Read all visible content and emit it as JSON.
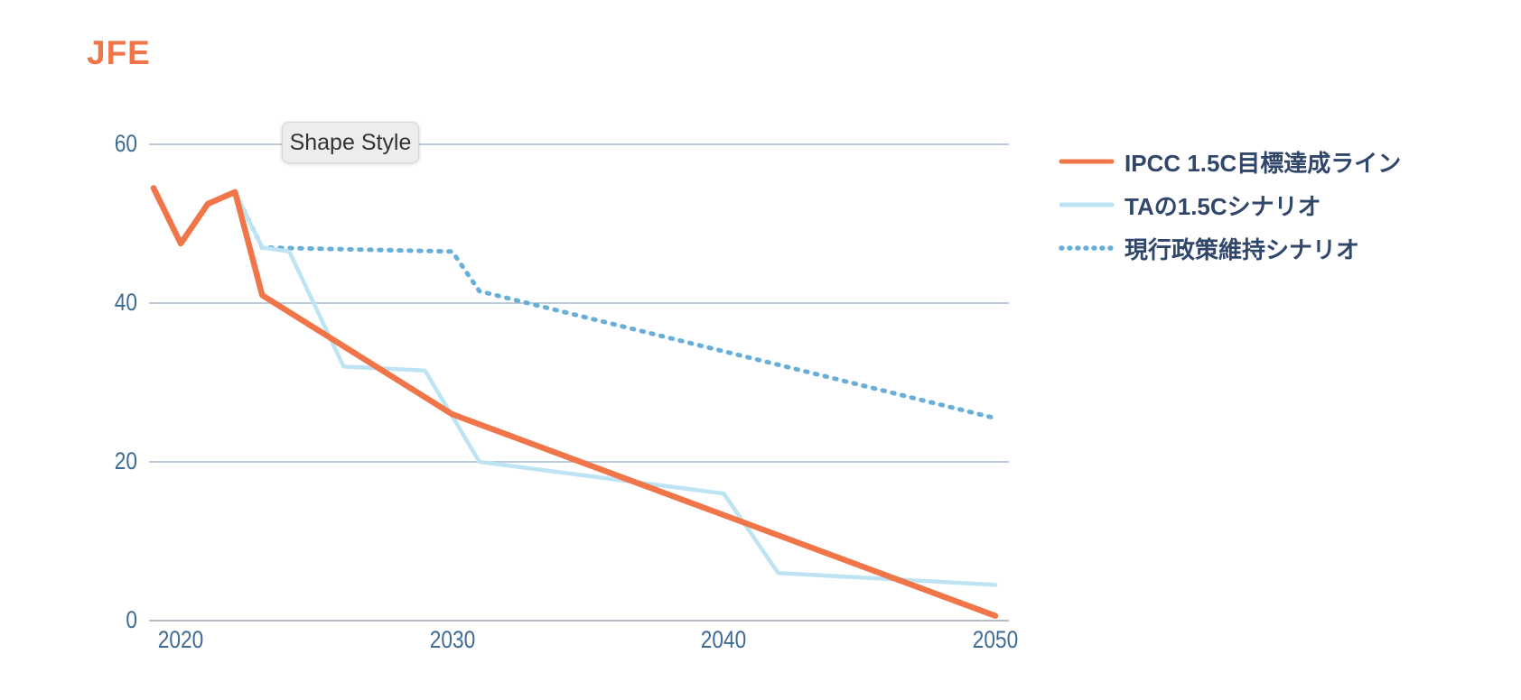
{
  "page": {
    "title": "JFE",
    "tooltip": "Shape Style"
  },
  "chart_data": {
    "type": "line",
    "title": "JFE",
    "xlabel": "",
    "ylabel": "",
    "grid": true,
    "legend_position": "right",
    "x_axis": {
      "ticks": [
        2020,
        2030,
        2040,
        2050
      ],
      "range": [
        2019,
        2050
      ]
    },
    "y_axis": {
      "ticks": [
        0,
        20,
        40,
        60
      ],
      "range": [
        0,
        60
      ]
    },
    "series": [
      {
        "name": "IPCC 1.5C目標達成ライン",
        "style": "solid",
        "color": "#F0764A",
        "width": 6.5,
        "points": [
          [
            2019,
            54.5
          ],
          [
            2020,
            47.5
          ],
          [
            2021,
            52.5
          ],
          [
            2022,
            54
          ],
          [
            2023,
            41
          ],
          [
            2030,
            26
          ],
          [
            2040,
            13.3
          ],
          [
            2050,
            0.6
          ]
        ]
      },
      {
        "name": "TAの1.5Cシナリオ",
        "style": "solid",
        "color": "#BEE4F4",
        "width": 4.5,
        "points": [
          [
            2022,
            54
          ],
          [
            2023,
            47
          ],
          [
            2024,
            46.5
          ],
          [
            2026,
            32
          ],
          [
            2029,
            31.5
          ],
          [
            2031,
            20
          ],
          [
            2040,
            16
          ],
          [
            2042,
            6
          ],
          [
            2050,
            4.5
          ]
        ]
      },
      {
        "name": "現行政策維持シナリオ",
        "style": "dotted",
        "color": "#67AFD9",
        "width": 5,
        "points": [
          [
            2022,
            54
          ],
          [
            2023,
            47
          ],
          [
            2030,
            46.5
          ],
          [
            2031,
            41.5
          ],
          [
            2050,
            25.5
          ]
        ]
      }
    ],
    "colors": {
      "title": "#F0764A",
      "grid": "#A6BCD3",
      "axis_zero_line": "#9AA5B4",
      "tick_label": "#3F6A94",
      "legend_text": "#31466B"
    }
  }
}
